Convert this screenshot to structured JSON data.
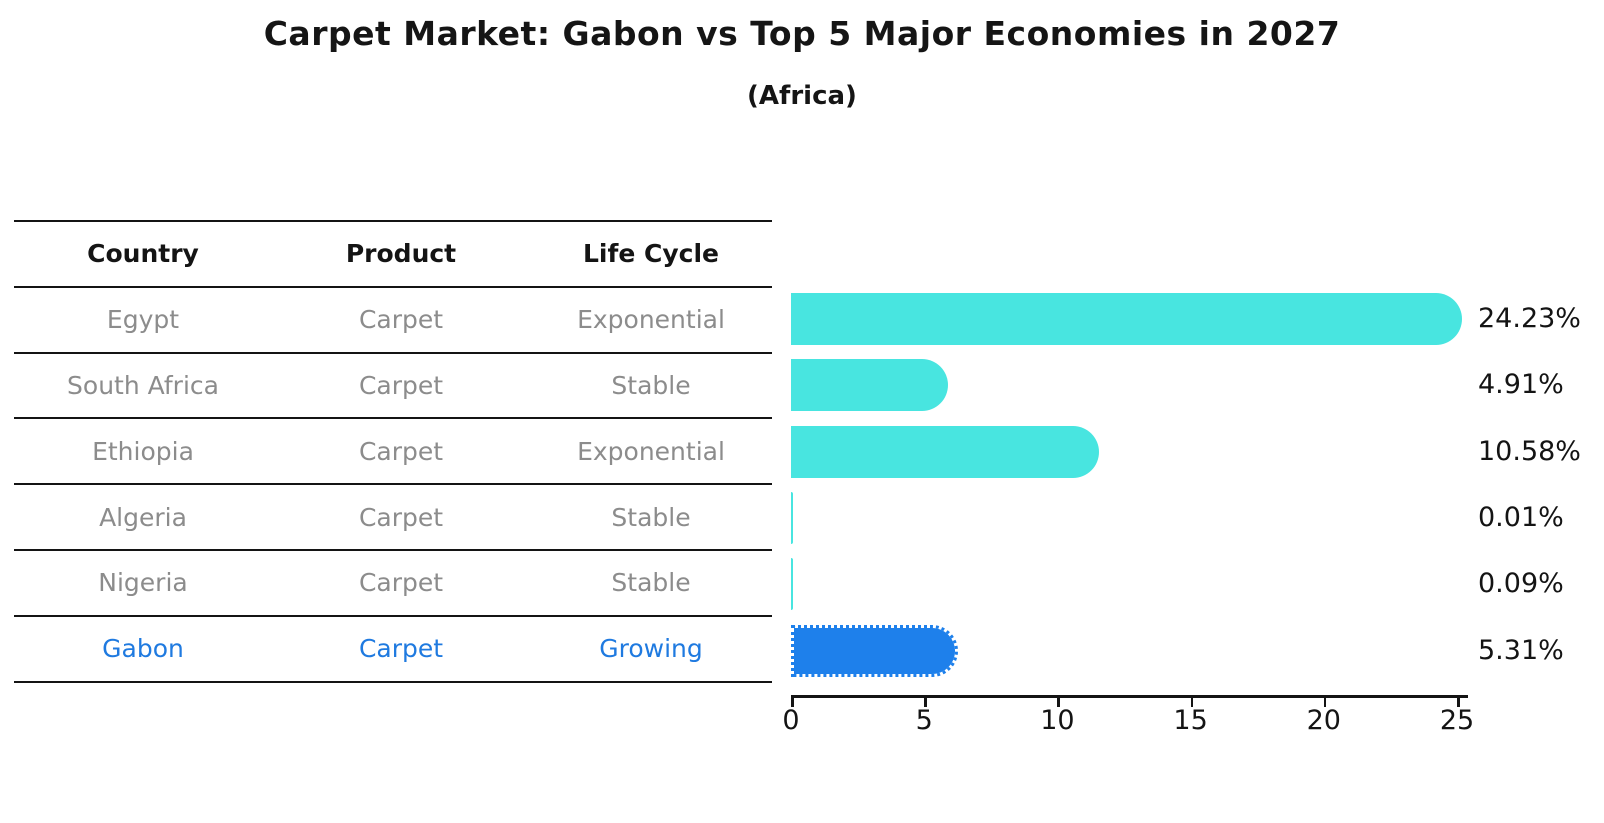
{
  "title": "Carpet Market: Gabon vs Top 5 Major Economies in 2027",
  "subtitle": "(Africa)",
  "table": {
    "headers": [
      "Country",
      "Product",
      "Life Cycle"
    ],
    "rows": [
      {
        "country": "Egypt",
        "product": "Carpet",
        "life_cycle": "Exponential",
        "highlight": false
      },
      {
        "country": "South Africa",
        "product": "Carpet",
        "life_cycle": "Stable",
        "highlight": false
      },
      {
        "country": "Ethiopia",
        "product": "Carpet",
        "life_cycle": "Exponential",
        "highlight": false
      },
      {
        "country": "Algeria",
        "product": "Carpet",
        "life_cycle": "Stable",
        "highlight": false
      },
      {
        "country": "Nigeria",
        "product": "Carpet",
        "life_cycle": "Stable",
        "highlight": false
      },
      {
        "country": "Gabon",
        "product": "Carpet",
        "life_cycle": "Growing",
        "highlight": true
      }
    ]
  },
  "chart_data": {
    "type": "bar",
    "orientation": "horizontal",
    "categories": [
      "Egypt",
      "South Africa",
      "Ethiopia",
      "Algeria",
      "Nigeria",
      "Gabon"
    ],
    "values": [
      24.23,
      4.91,
      10.58,
      0.01,
      0.09,
      5.31
    ],
    "value_labels": [
      "24.23%",
      "4.91%",
      "10.58%",
      "0.01%",
      "0.09%",
      "5.31%"
    ],
    "highlight_index": 5,
    "xlim": [
      0,
      25
    ],
    "x_ticks": [
      0,
      5,
      10,
      15,
      20,
      25
    ],
    "grid": false,
    "legend": false,
    "bar_color": "#48E5E0",
    "highlight_color": "#1E80EB",
    "text_gray": "#8C8C8C",
    "highlight_text_color": "#1F7AE0",
    "axis_color": "#141414"
  }
}
